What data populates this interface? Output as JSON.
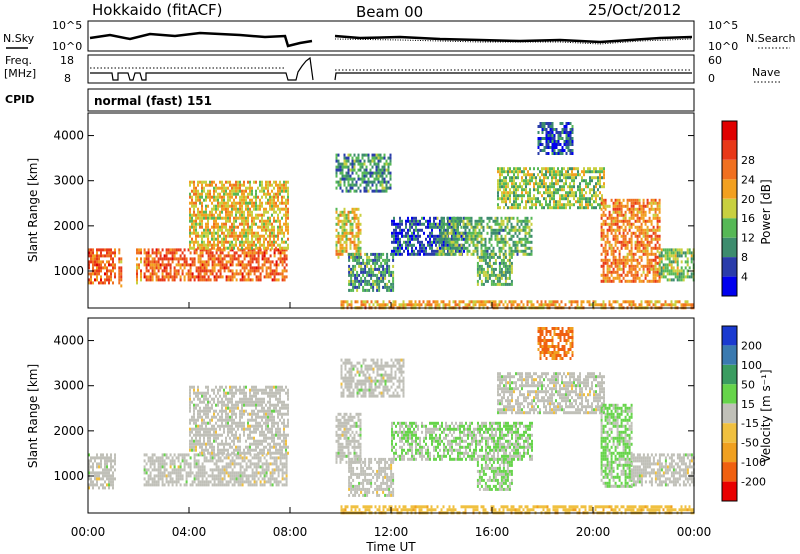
{
  "header": {
    "station": "Hokkaido (fitACF)",
    "beam": "Beam 00",
    "date": "25/Oct/2012"
  },
  "top_strip": {
    "left_label": "N.Sky",
    "right_label": "N.Search",
    "ticks_left": [
      "10^5",
      "10^0"
    ],
    "ticks_right": [
      "10^5",
      "10^0"
    ]
  },
  "freq_strip": {
    "left_label_1": "Freq.",
    "left_label_2": "[MHz]",
    "right_label": "Nave",
    "ticks_left": [
      "18",
      "8"
    ],
    "ticks_right": [
      "60",
      "0"
    ]
  },
  "cpid": {
    "label": "CPID",
    "value": "normal (fast) 151"
  },
  "chart_data": [
    {
      "type": "heatmap",
      "panel": "power",
      "ylabel": "Slant Range [km]",
      "ylim": [
        180,
        4500
      ],
      "yticks": [
        1000,
        2000,
        3000,
        4000
      ],
      "xlabel": "Time UT",
      "xticks": [
        "00:00",
        "04:00",
        "08:00",
        "12:00",
        "16:00",
        "20:00",
        "00:00"
      ],
      "colorbar": {
        "label": "Power [dB]",
        "ticks": [
          "4",
          "8",
          "12",
          "16",
          "20",
          "24",
          "28"
        ],
        "colors": [
          "#0000ee",
          "#2a3caa",
          "#3d8c6e",
          "#56b856",
          "#c8d040",
          "#f2a020",
          "#f07020",
          "#e83818",
          "#e00000"
        ]
      },
      "regions": [
        {
          "t": [
            0.0,
            1.1
          ],
          "r": [
            750,
            1500
          ],
          "v": 24
        },
        {
          "t": [
            1.2,
            1.3
          ],
          "r": [
            700,
            1500
          ],
          "v": 22
        },
        {
          "t": [
            1.9,
            2.1
          ],
          "r": [
            700,
            1500
          ],
          "v": 22
        },
        {
          "t": [
            2.2,
            7.9
          ],
          "r": [
            800,
            1500
          ],
          "v": 24
        },
        {
          "t": [
            4.0,
            7.9
          ],
          "r": [
            1500,
            3000
          ],
          "v": 18
        },
        {
          "t": [
            9.8,
            10.8
          ],
          "r": [
            1300,
            2400
          ],
          "v": 18
        },
        {
          "t": [
            9.8,
            12.0
          ],
          "r": [
            2800,
            3600
          ],
          "v": 10
        },
        {
          "t": [
            10.3,
            12.1
          ],
          "r": [
            600,
            1400
          ],
          "v": 10
        },
        {
          "t": [
            12.0,
            15.0
          ],
          "r": [
            1400,
            2200
          ],
          "v": 6
        },
        {
          "t": [
            13.8,
            17.6
          ],
          "r": [
            1400,
            2200
          ],
          "v": 12
        },
        {
          "t": [
            15.4,
            16.8
          ],
          "r": [
            700,
            1400
          ],
          "v": 12
        },
        {
          "t": [
            16.2,
            20.4
          ],
          "r": [
            2400,
            3300
          ],
          "v": 14
        },
        {
          "t": [
            17.8,
            19.2
          ],
          "r": [
            3600,
            4300
          ],
          "v": 6
        },
        {
          "t": [
            20.3,
            22.6
          ],
          "r": [
            800,
            2600
          ],
          "v": 22
        },
        {
          "t": [
            22.6,
            24.0
          ],
          "r": [
            800,
            1500
          ],
          "v": 14
        },
        {
          "t": [
            10.0,
            24.0
          ],
          "r": [
            180,
            350
          ],
          "v": 20
        }
      ]
    },
    {
      "type": "heatmap",
      "panel": "velocity",
      "ylabel": "Slant Range [km]",
      "ylim": [
        180,
        4500
      ],
      "yticks": [
        1000,
        2000,
        3000,
        4000
      ],
      "xlabel": "Time UT",
      "xticks": [
        "00:00",
        "04:00",
        "08:00",
        "12:00",
        "16:00",
        "20:00",
        "00:00"
      ],
      "colorbar": {
        "label": "Velocity [m s⁻¹]",
        "ticks": [
          "200",
          "100",
          "50",
          "15",
          "-15",
          "-50",
          "-100",
          "-200"
        ],
        "colors": [
          "#1a3ad0",
          "#3a7ab0",
          "#3a9c60",
          "#66d44a",
          "#c0c0b8",
          "#f0c040",
          "#f0a020",
          "#f06010",
          "#e80000"
        ]
      },
      "regions": [
        {
          "t": [
            0.0,
            1.1
          ],
          "r": [
            750,
            1500
          ],
          "v": 0
        },
        {
          "t": [
            2.2,
            7.9
          ],
          "r": [
            800,
            1500
          ],
          "v": 0
        },
        {
          "t": [
            4.0,
            7.9
          ],
          "r": [
            1500,
            3000
          ],
          "v": 0
        },
        {
          "t": [
            9.8,
            10.8
          ],
          "r": [
            1300,
            2400
          ],
          "v": 0
        },
        {
          "t": [
            10.0,
            12.5
          ],
          "r": [
            2800,
            3600
          ],
          "v": 0
        },
        {
          "t": [
            10.3,
            12.1
          ],
          "r": [
            600,
            1400
          ],
          "v": 0
        },
        {
          "t": [
            12.0,
            17.6
          ],
          "r": [
            1400,
            2200
          ],
          "v": 30
        },
        {
          "t": [
            15.4,
            16.8
          ],
          "r": [
            700,
            1400
          ],
          "v": 30
        },
        {
          "t": [
            16.2,
            20.4
          ],
          "r": [
            2400,
            3300
          ],
          "v": 0
        },
        {
          "t": [
            17.8,
            19.2
          ],
          "r": [
            3600,
            4300
          ],
          "v": -150
        },
        {
          "t": [
            20.3,
            21.5
          ],
          "r": [
            800,
            2600
          ],
          "v": 40
        },
        {
          "t": [
            21.5,
            24.0
          ],
          "r": [
            800,
            1500
          ],
          "v": 0
        },
        {
          "t": [
            10.0,
            24.0
          ],
          "r": [
            180,
            350
          ],
          "v": -60
        }
      ]
    }
  ]
}
